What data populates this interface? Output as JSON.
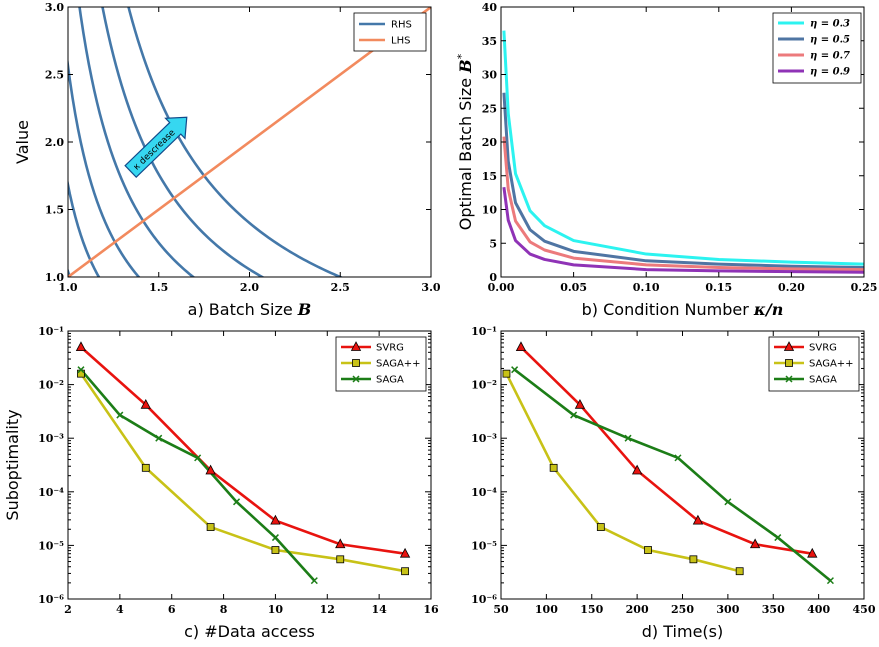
{
  "colors": {
    "rhs": "#4478a9",
    "lhs": "#f28a5e",
    "arrow": "#36d7f0",
    "eta03": "#2cf3f0",
    "eta05": "#4f75a3",
    "eta07": "#ec7a7c",
    "eta09": "#8f33b6",
    "svrg": "#e8130f",
    "sagapp": "#c8c217",
    "saga": "#1c7d17"
  },
  "chart_data": [
    {
      "id": "a",
      "type": "line",
      "xlabel": "a) Batch Size B",
      "ylabel": "Value",
      "xlim": [
        1.0,
        3.0
      ],
      "ylim": [
        1.0,
        3.0
      ],
      "xticks": [
        "1.0",
        "1.5",
        "2.0",
        "2.5",
        "3.0"
      ],
      "yticks": [
        "1.0",
        "1.5",
        "2.0",
        "2.5",
        "3.0"
      ],
      "legend_position": "top-right",
      "annotation": "κ descrease",
      "series": [
        {
          "name": "RHS",
          "description": "family of decreasing curves y = c/(x-0.75)",
          "c_values": [
            0.05,
            0.14,
            0.26,
            0.42,
            0.64,
            0.94,
            1.32,
            1.75
          ]
        },
        {
          "name": "LHS",
          "x": [
            1.0,
            3.0
          ],
          "y": [
            1.0,
            3.0
          ]
        }
      ]
    },
    {
      "id": "b",
      "type": "line",
      "xlabel": "b) Condition Number κ/n",
      "ylabel": "Optimal Batch Size B*",
      "xlim": [
        0.0,
        0.25
      ],
      "ylim": [
        0,
        40
      ],
      "xticks": [
        "0.00",
        "0.05",
        "0.10",
        "0.15",
        "0.20",
        "0.25"
      ],
      "yticks": [
        "0",
        "5",
        "10",
        "15",
        "20",
        "25",
        "30",
        "35",
        "40"
      ],
      "legend_position": "top-right",
      "series": [
        {
          "name": "η = 0.3",
          "x": [
            0.002,
            0.005,
            0.01,
            0.02,
            0.03,
            0.05,
            0.1,
            0.15,
            0.2,
            0.25
          ],
          "y": [
            36.5,
            24.2,
            15.3,
            9.8,
            7.6,
            5.4,
            3.4,
            2.6,
            2.2,
            1.9
          ]
        },
        {
          "name": "η = 0.5",
          "x": [
            0.002,
            0.005,
            0.01,
            0.02,
            0.03,
            0.05,
            0.1,
            0.15,
            0.2,
            0.25
          ],
          "y": [
            27.3,
            17.1,
            11.0,
            7.0,
            5.3,
            3.8,
            2.4,
            1.9,
            1.6,
            1.4
          ]
        },
        {
          "name": "η = 0.7",
          "x": [
            0.002,
            0.005,
            0.01,
            0.02,
            0.03,
            0.05,
            0.1,
            0.15,
            0.2,
            0.25
          ],
          "y": [
            20.8,
            13.0,
            8.3,
            5.2,
            4.0,
            2.8,
            1.8,
            1.4,
            1.2,
            1.1
          ]
        },
        {
          "name": "η = 0.9",
          "x": [
            0.002,
            0.005,
            0.01,
            0.02,
            0.03,
            0.05,
            0.1,
            0.15,
            0.2,
            0.25
          ],
          "y": [
            13.3,
            8.4,
            5.4,
            3.4,
            2.6,
            1.8,
            1.1,
            0.9,
            0.8,
            0.7
          ]
        }
      ]
    },
    {
      "id": "c",
      "type": "line",
      "xlabel": "c) #Data access",
      "ylabel": "Suboptimality",
      "yscale": "log",
      "xlim": [
        2,
        16
      ],
      "ylim": [
        1e-06,
        0.1
      ],
      "xticks": [
        "2",
        "4",
        "6",
        "8",
        "10",
        "12",
        "14",
        "16"
      ],
      "yticks": [
        "10⁻⁶",
        "10⁻⁵",
        "10⁻⁴",
        "10⁻³",
        "10⁻²",
        "10⁻¹"
      ],
      "legend_position": "top-right",
      "series": [
        {
          "name": "SVRG",
          "marker": "triangle",
          "x": [
            2.5,
            5,
            7.5,
            10,
            12.5,
            15
          ],
          "y": [
            0.05,
            0.0042,
            0.00025,
            2.9e-05,
            1.05e-05,
            7e-06
          ]
        },
        {
          "name": "SAGA++",
          "marker": "square",
          "x": [
            2.5,
            5,
            7.5,
            10,
            12.5,
            15
          ],
          "y": [
            0.016,
            0.00028,
            2.2e-05,
            8.2e-06,
            5.5e-06,
            3.3e-06
          ]
        },
        {
          "name": "SAGA",
          "marker": "x",
          "x": [
            2.5,
            4,
            5.5,
            7,
            8.5,
            10,
            11.5
          ],
          "y": [
            0.019,
            0.0027,
            0.001,
            0.00043,
            6.5e-05,
            1.4e-05,
            2.2e-06
          ]
        }
      ]
    },
    {
      "id": "d",
      "type": "line",
      "xlabel": "d) Time(s)",
      "ylabel": "",
      "yscale": "log",
      "xlim": [
        50,
        450
      ],
      "ylim": [
        1e-06,
        0.1
      ],
      "xticks": [
        "50",
        "100",
        "150",
        "200",
        "250",
        "300",
        "350",
        "400",
        "450"
      ],
      "yticks": [
        "10⁻⁶",
        "10⁻⁵",
        "10⁻⁴",
        "10⁻³",
        "10⁻²",
        "10⁻¹"
      ],
      "legend_position": "top-right",
      "series": [
        {
          "name": "SVRG",
          "marker": "triangle",
          "x": [
            72,
            137,
            200,
            267,
            330,
            393
          ],
          "y": [
            0.05,
            0.0042,
            0.00025,
            2.9e-05,
            1.05e-05,
            7e-06
          ]
        },
        {
          "name": "SAGA++",
          "marker": "square",
          "x": [
            56,
            108,
            160,
            212,
            262,
            313
          ],
          "y": [
            0.016,
            0.00028,
            2.2e-05,
            8.2e-06,
            5.5e-06,
            3.3e-06
          ]
        },
        {
          "name": "SAGA",
          "marker": "x",
          "x": [
            65,
            130,
            190,
            245,
            300,
            355,
            413
          ],
          "y": [
            0.019,
            0.0027,
            0.001,
            0.00043,
            6.5e-05,
            1.4e-05,
            2.2e-06
          ]
        }
      ]
    }
  ]
}
